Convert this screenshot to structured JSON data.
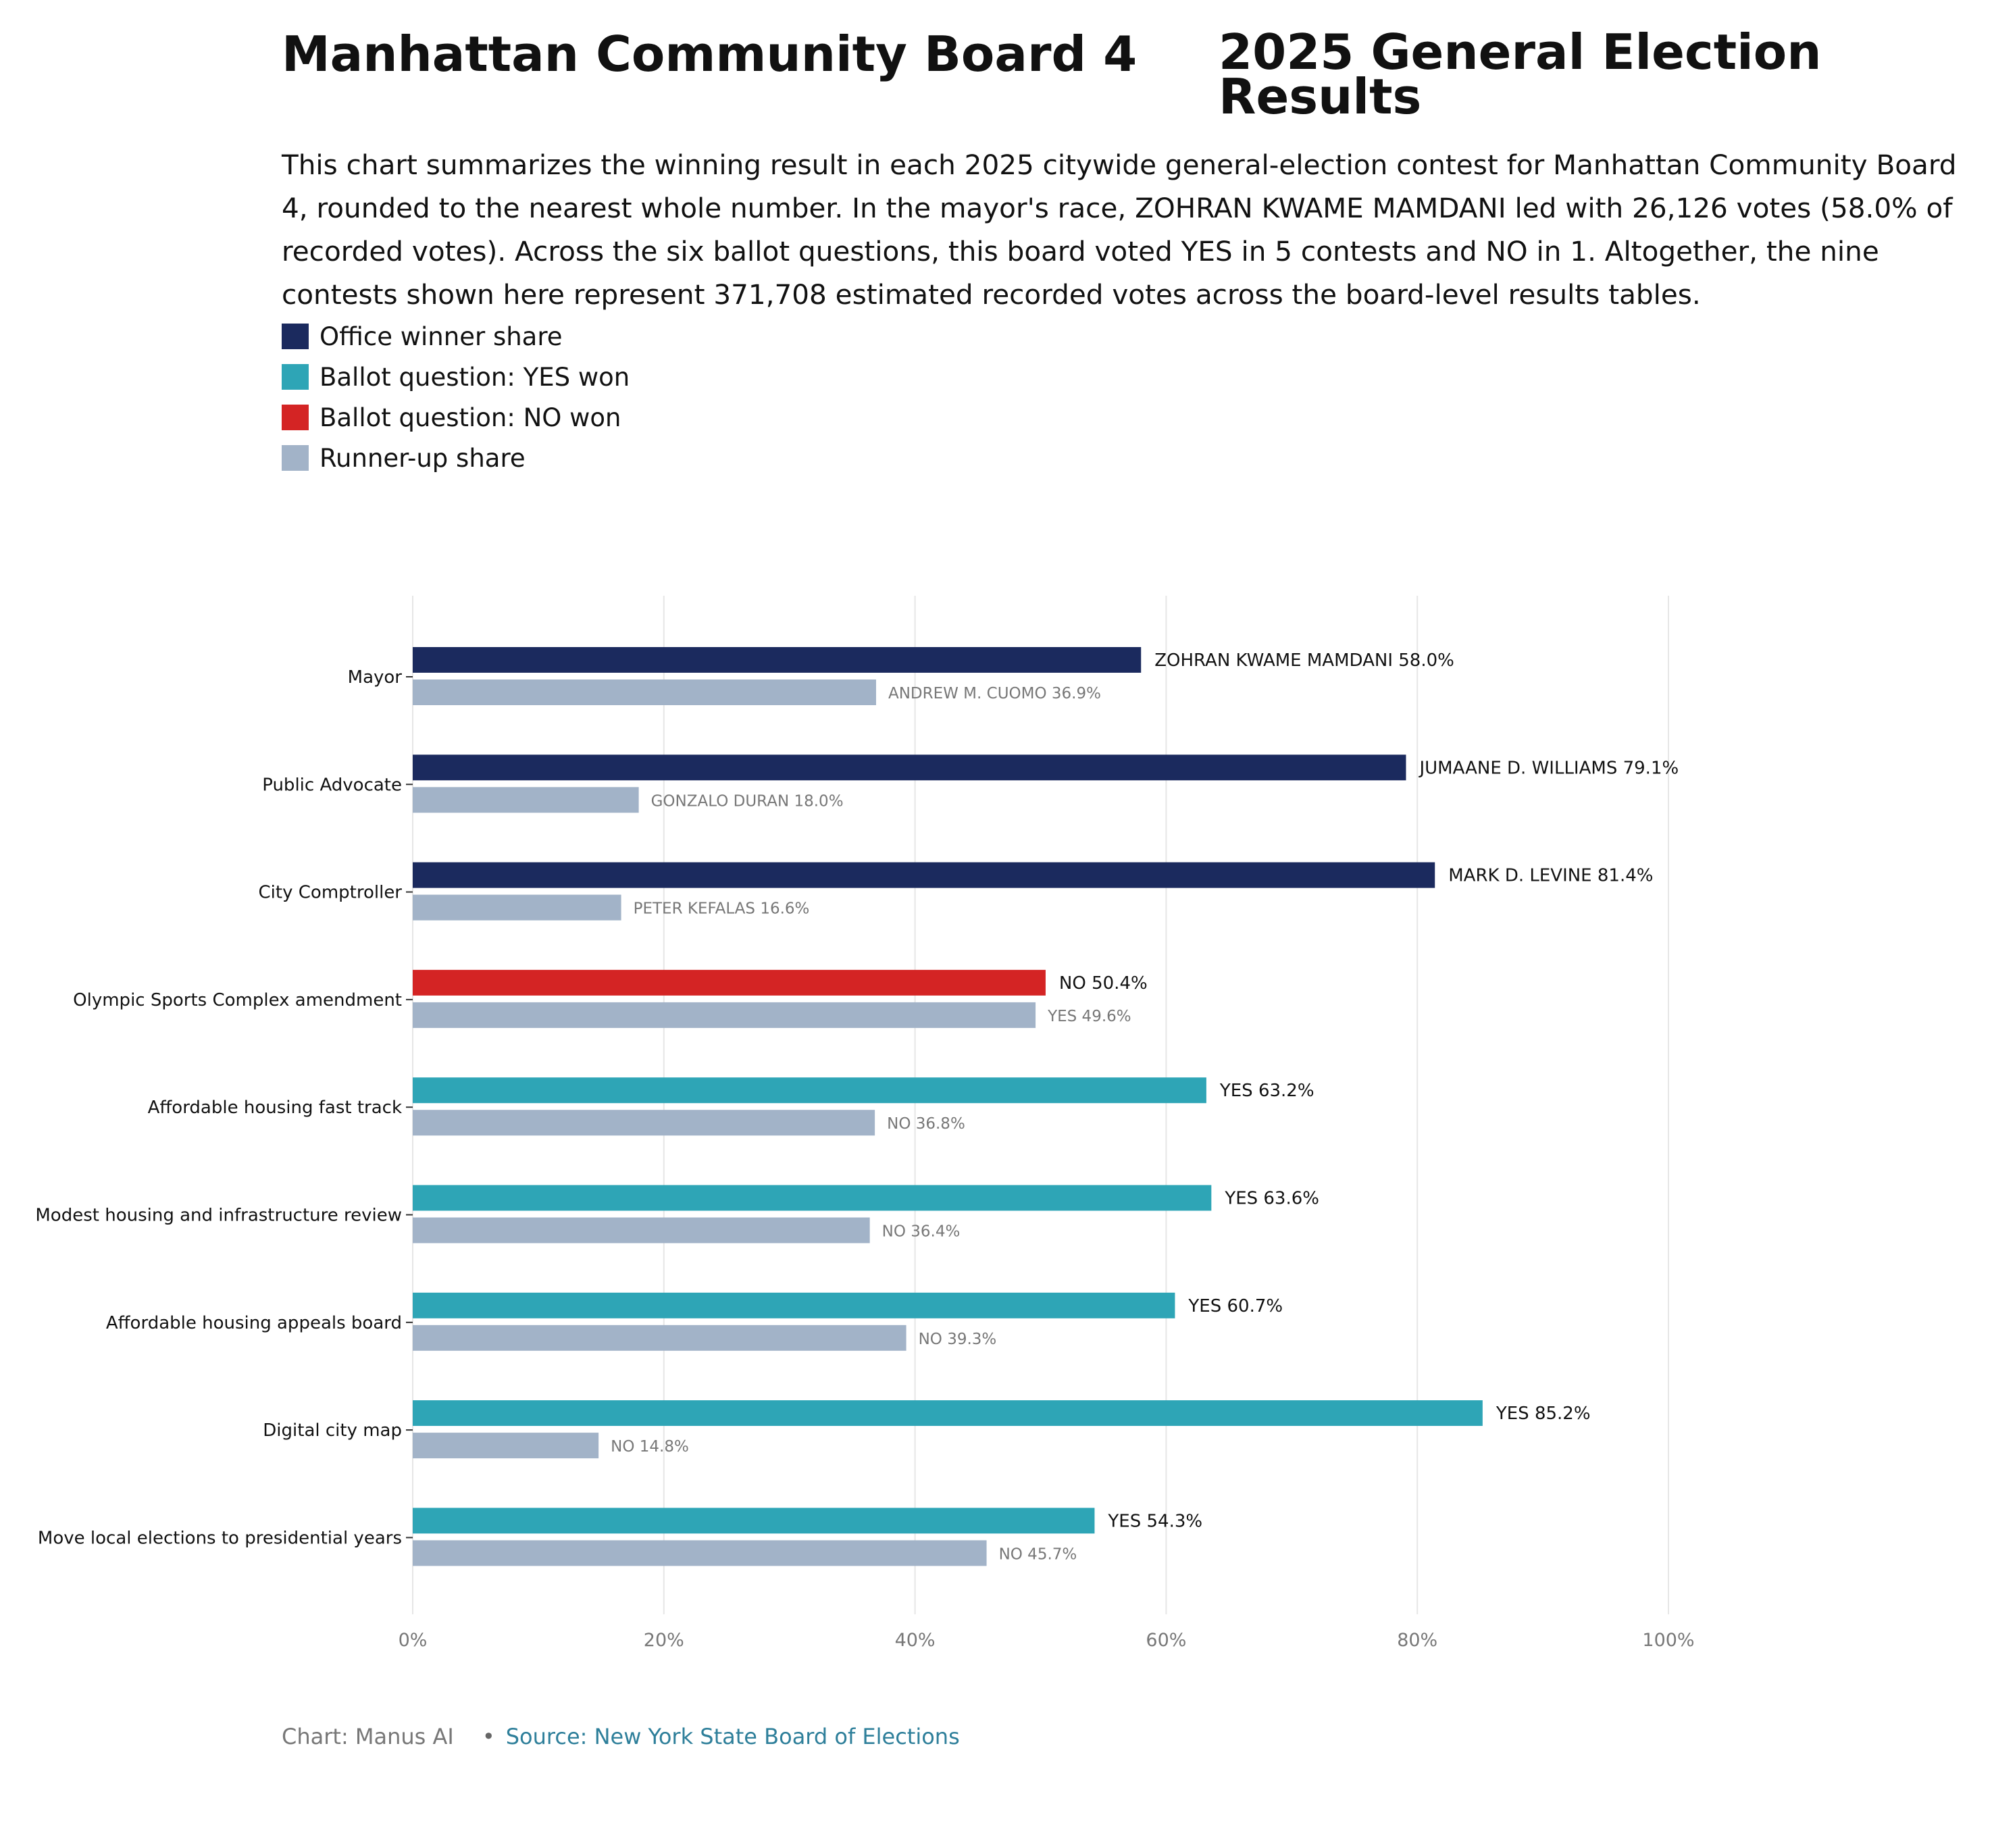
{
  "header": {
    "title_left": "Manhattan Community Board 4",
    "title_right": "2025 General Election Results",
    "subtitle": "This chart summarizes the winning result in each 2025 citywide general-election contest for Manhattan Community Board 4, rounded to the nearest whole number. In the mayor's race, ZOHRAN KWAME MAMDANI led with 26,126 votes (58.0% of recorded votes). Across the six ballot questions, this board voted YES in 5 contests and NO in 1. Altogether, the nine contests shown here represent 371,708 estimated recorded votes across the board-level results tables."
  },
  "legend": [
    {
      "label": "Office winner share",
      "color": "#1b2a5e"
    },
    {
      "label": "Ballot question: YES won",
      "color": "#2ea5b6"
    },
    {
      "label": "Ballot question: NO won",
      "color": "#d42424"
    },
    {
      "label": "Runner-up share",
      "color": "#a2b3c8"
    }
  ],
  "colors": {
    "office_winner": "#1b2a5e",
    "yes_won": "#2ea5b6",
    "no_won": "#d42424",
    "runner_up": "#a2b3c8"
  },
  "chart_data": {
    "type": "bar",
    "orientation": "horizontal",
    "xlim": [
      0,
      100
    ],
    "x_ticks": [
      "0%",
      "20%",
      "40%",
      "60%",
      "80%",
      "100%"
    ],
    "x_tick_values": [
      0,
      20,
      40,
      60,
      80,
      100
    ],
    "grid": "vertical",
    "categories": [
      "Mayor",
      "Public Advocate",
      "City Comptroller",
      "Olympic Sports Complex amendment",
      "Affordable housing fast track",
      "Modest housing and infrastructure review",
      "Affordable housing appeals board",
      "Digital city map",
      "Move local elections to presidential years"
    ],
    "series": [
      {
        "name": "Winner",
        "values": [
          58.0,
          79.1,
          81.4,
          50.4,
          63.2,
          63.6,
          60.7,
          85.2,
          54.3
        ],
        "kinds": [
          "office_winner",
          "office_winner",
          "office_winner",
          "no_won",
          "yes_won",
          "yes_won",
          "yes_won",
          "yes_won",
          "yes_won"
        ],
        "labels": [
          "ZOHRAN KWAME MAMDANI 58.0%",
          "JUMAANE D. WILLIAMS 79.1%",
          "MARK D. LEVINE 81.4%",
          "NO 50.4%",
          "YES 63.2%",
          "YES 63.6%",
          "YES 60.7%",
          "YES 85.2%",
          "YES 54.3%"
        ]
      },
      {
        "name": "Runner-up",
        "values": [
          36.9,
          18.0,
          16.6,
          49.6,
          36.8,
          36.4,
          39.3,
          14.8,
          45.7
        ],
        "kinds": [
          "runner_up",
          "runner_up",
          "runner_up",
          "runner_up",
          "runner_up",
          "runner_up",
          "runner_up",
          "runner_up",
          "runner_up"
        ],
        "labels": [
          "ANDREW M. CUOMO 36.9%",
          "GONZALO DURAN 18.0%",
          "PETER KEFALAS 16.6%",
          "YES 49.6%",
          "NO 36.8%",
          "NO 36.4%",
          "NO 39.3%",
          "NO 14.8%",
          "NO 45.7%"
        ]
      }
    ]
  },
  "footer": {
    "credit": "Chart: Manus AI",
    "separator": "•",
    "source": "Source: New York State Board of Elections"
  }
}
